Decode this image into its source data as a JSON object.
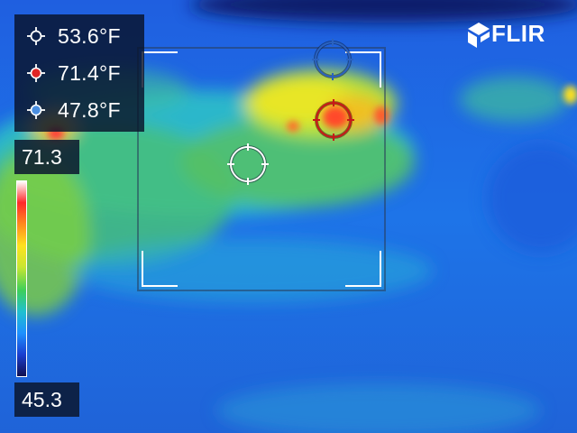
{
  "brand": {
    "logo_text": "FLIR"
  },
  "measurements": [
    {
      "id": "center",
      "value": "53.6°F",
      "marker_color": "#ffffff",
      "icon": "crosshair-icon"
    },
    {
      "id": "hot",
      "value": "71.4°F",
      "marker_color": "#e02424",
      "icon": "hot-spot-icon"
    },
    {
      "id": "cold",
      "value": "47.8°F",
      "marker_color": "#4a8ee0",
      "icon": "cold-spot-icon"
    }
  ],
  "scale": {
    "max": "71.3",
    "min": "45.3"
  },
  "palette": [
    "#101050",
    "#1a3ed0",
    "#1e90ff",
    "#20c0d0",
    "#3ecf5a",
    "#c8e632",
    "#ffe21e",
    "#ff8a1e",
    "#ff2a2a",
    "#ffffff"
  ]
}
